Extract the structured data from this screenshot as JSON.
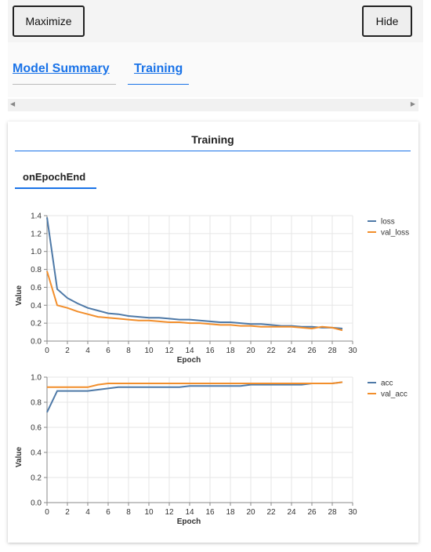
{
  "toolbar": {
    "maximize_label": "Maximize",
    "hide_label": "Hide"
  },
  "tabs": [
    {
      "label": "Model Summary"
    },
    {
      "label": "Training"
    }
  ],
  "panel": {
    "title": "Training",
    "subtab": "onEpochEnd"
  },
  "chart_data": [
    {
      "type": "line",
      "xlabel": "Epoch",
      "ylabel": "Value",
      "xlim": [
        0,
        30
      ],
      "ylim": [
        0,
        1.4
      ],
      "xticks": [
        0,
        2,
        4,
        6,
        8,
        10,
        12,
        14,
        16,
        18,
        20,
        22,
        24,
        26,
        28,
        30
      ],
      "yticks": [
        0,
        0.2,
        0.4,
        0.6,
        0.8,
        1.0,
        1.2,
        1.4
      ],
      "ytick_labels": [
        "0.0",
        "0.2",
        "0.4",
        "0.6",
        "0.8",
        "1.0",
        "1.2",
        "1.4"
      ],
      "grid": true,
      "legend": "right",
      "x": [
        0,
        1,
        2,
        3,
        4,
        5,
        6,
        7,
        8,
        9,
        10,
        11,
        12,
        13,
        14,
        15,
        16,
        17,
        18,
        19,
        20,
        21,
        22,
        23,
        24,
        25,
        26,
        27,
        28,
        29
      ],
      "series": [
        {
          "name": "loss",
          "color": "#4e79a7",
          "values": [
            1.38,
            0.58,
            0.48,
            0.42,
            0.37,
            0.34,
            0.31,
            0.3,
            0.28,
            0.27,
            0.26,
            0.26,
            0.25,
            0.24,
            0.24,
            0.23,
            0.22,
            0.21,
            0.21,
            0.2,
            0.19,
            0.19,
            0.18,
            0.17,
            0.17,
            0.16,
            0.16,
            0.15,
            0.15,
            0.14
          ]
        },
        {
          "name": "val_loss",
          "color": "#f28e2b",
          "values": [
            0.78,
            0.4,
            0.37,
            0.33,
            0.3,
            0.27,
            0.26,
            0.25,
            0.24,
            0.23,
            0.23,
            0.22,
            0.21,
            0.21,
            0.2,
            0.2,
            0.19,
            0.18,
            0.18,
            0.17,
            0.17,
            0.16,
            0.16,
            0.16,
            0.16,
            0.15,
            0.14,
            0.16,
            0.15,
            0.12
          ]
        }
      ]
    },
    {
      "type": "line",
      "xlabel": "Epoch",
      "ylabel": "Value",
      "xlim": [
        0,
        30
      ],
      "ylim": [
        0,
        1.0
      ],
      "xticks": [
        0,
        2,
        4,
        6,
        8,
        10,
        12,
        14,
        16,
        18,
        20,
        22,
        24,
        26,
        28,
        30
      ],
      "yticks": [
        0,
        0.2,
        0.4,
        0.6,
        0.8,
        1.0
      ],
      "ytick_labels": [
        "0.0",
        "0.2",
        "0.4",
        "0.6",
        "0.8",
        "1.0"
      ],
      "grid": true,
      "legend": "right",
      "x": [
        0,
        1,
        2,
        3,
        4,
        5,
        6,
        7,
        8,
        9,
        10,
        11,
        12,
        13,
        14,
        15,
        16,
        17,
        18,
        19,
        20,
        21,
        22,
        23,
        24,
        25,
        26,
        27,
        28,
        29
      ],
      "series": [
        {
          "name": "acc",
          "color": "#4e79a7",
          "values": [
            0.72,
            0.89,
            0.89,
            0.89,
            0.89,
            0.9,
            0.91,
            0.92,
            0.92,
            0.92,
            0.92,
            0.92,
            0.92,
            0.92,
            0.93,
            0.93,
            0.93,
            0.93,
            0.93,
            0.93,
            0.94,
            0.94,
            0.94,
            0.94,
            0.94,
            0.94,
            0.95,
            0.95,
            0.95,
            0.96
          ]
        },
        {
          "name": "val_acc",
          "color": "#f28e2b",
          "values": [
            0.92,
            0.92,
            0.92,
            0.92,
            0.92,
            0.94,
            0.95,
            0.95,
            0.95,
            0.95,
            0.95,
            0.95,
            0.95,
            0.95,
            0.95,
            0.95,
            0.95,
            0.95,
            0.95,
            0.95,
            0.95,
            0.95,
            0.95,
            0.95,
            0.95,
            0.95,
            0.95,
            0.95,
            0.95,
            0.96
          ]
        }
      ]
    }
  ]
}
